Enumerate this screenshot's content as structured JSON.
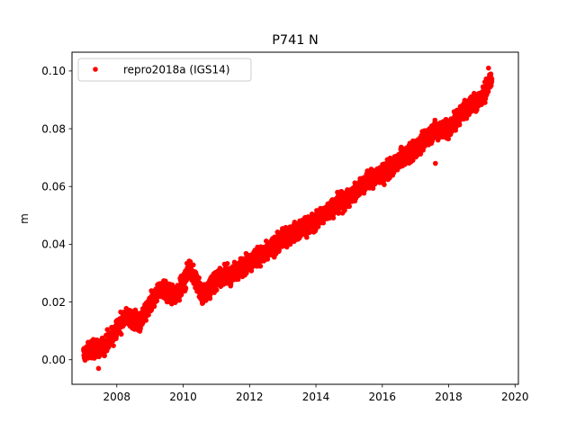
{
  "chart_data": {
    "type": "scatter",
    "title": "P741 N",
    "xlabel": "",
    "ylabel": "m",
    "xlim": [
      2006.65,
      2020.1
    ],
    "ylim": [
      -0.0085,
      0.1065
    ],
    "xticks": [
      2008,
      2010,
      2012,
      2014,
      2016,
      2018,
      2020
    ],
    "xtick_labels": [
      "2008",
      "2010",
      "2012",
      "2014",
      "2016",
      "2018",
      "2020"
    ],
    "yticks": [
      0.0,
      0.02,
      0.04,
      0.06,
      0.08,
      0.1
    ],
    "ytick_labels": [
      "0.00",
      "0.02",
      "0.04",
      "0.06",
      "0.08",
      "0.10"
    ],
    "grid": false,
    "legend_position": "top-left",
    "series": [
      {
        "name": "repro2018a (IGS14)",
        "color": "#ff0000",
        "marker": "circle",
        "trend_points": [
          {
            "x": 2007.0,
            "y": 0.002
          },
          {
            "x": 2007.3,
            "y": 0.004
          },
          {
            "x": 2007.6,
            "y": 0.004
          },
          {
            "x": 2008.0,
            "y": 0.011
          },
          {
            "x": 2008.3,
            "y": 0.015
          },
          {
            "x": 2008.7,
            "y": 0.013
          },
          {
            "x": 2009.0,
            "y": 0.019
          },
          {
            "x": 2009.3,
            "y": 0.025
          },
          {
            "x": 2009.7,
            "y": 0.022
          },
          {
            "x": 2010.0,
            "y": 0.026
          },
          {
            "x": 2010.2,
            "y": 0.032
          },
          {
            "x": 2010.6,
            "y": 0.022
          },
          {
            "x": 2011.0,
            "y": 0.028
          },
          {
            "x": 2011.5,
            "y": 0.03
          },
          {
            "x": 2012.0,
            "y": 0.034
          },
          {
            "x": 2012.5,
            "y": 0.037
          },
          {
            "x": 2013.0,
            "y": 0.042
          },
          {
            "x": 2013.5,
            "y": 0.045
          },
          {
            "x": 2014.0,
            "y": 0.048
          },
          {
            "x": 2014.5,
            "y": 0.053
          },
          {
            "x": 2015.0,
            "y": 0.056
          },
          {
            "x": 2015.5,
            "y": 0.062
          },
          {
            "x": 2016.0,
            "y": 0.064
          },
          {
            "x": 2016.5,
            "y": 0.069
          },
          {
            "x": 2017.0,
            "y": 0.073
          },
          {
            "x": 2017.5,
            "y": 0.079
          },
          {
            "x": 2018.0,
            "y": 0.08
          },
          {
            "x": 2018.5,
            "y": 0.087
          },
          {
            "x": 2019.0,
            "y": 0.091
          },
          {
            "x": 2019.3,
            "y": 0.097
          }
        ],
        "outliers": [
          {
            "x": 2007.45,
            "y": -0.003
          },
          {
            "x": 2017.6,
            "y": 0.068
          },
          {
            "x": 2019.2,
            "y": 0.101
          }
        ],
        "noise_amplitude": 0.0025,
        "n_points": 4200
      }
    ]
  }
}
